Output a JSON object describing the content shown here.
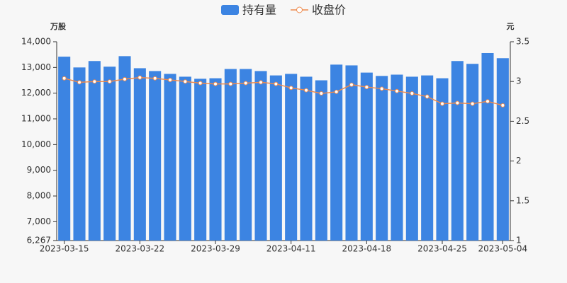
{
  "chart_data": {
    "type": "bar-line",
    "categories": [
      "2023-03-15",
      null,
      null,
      null,
      null,
      "2023-03-22",
      null,
      null,
      null,
      null,
      "2023-03-29",
      null,
      null,
      null,
      null,
      "2023-04-11",
      null,
      null,
      null,
      null,
      "2023-04-18",
      null,
      null,
      null,
      null,
      "2023-04-25",
      null,
      null,
      null,
      "2023-05-04"
    ],
    "y_axis_label": "万股",
    "y2_axis_label": "元",
    "series": [
      {
        "name": "持有量",
        "type": "bar",
        "color": "#3c84e2",
        "values": [
          13420,
          13000,
          13250,
          13030,
          13440,
          12970,
          12860,
          12750,
          12640,
          12560,
          12580,
          12940,
          12940,
          12860,
          12690,
          12750,
          12640,
          12500,
          13110,
          13080,
          12800,
          12670,
          12720,
          12640,
          12690,
          12580,
          13250,
          13140,
          13560,
          13360
        ]
      },
      {
        "name": "收盘价",
        "type": "line",
        "axis": "y2",
        "color": "#ee8a4d",
        "values": [
          3.04,
          2.99,
          3.0,
          3.0,
          3.03,
          3.05,
          3.04,
          3.02,
          3.0,
          2.98,
          2.97,
          2.97,
          2.98,
          2.99,
          2.97,
          2.92,
          2.89,
          2.85,
          2.87,
          2.96,
          2.93,
          2.91,
          2.88,
          2.85,
          2.81,
          2.72,
          2.73,
          2.72,
          2.75,
          2.7
        ]
      }
    ],
    "ylim": [
      6267,
      14000
    ],
    "yticks": [
      {
        "value": 6267,
        "label": "6,267"
      },
      {
        "value": 7000,
        "label": "7,000"
      },
      {
        "value": 8000,
        "label": "8,000"
      },
      {
        "value": 9000,
        "label": "9,000"
      },
      {
        "value": 10000,
        "label": "10,000"
      },
      {
        "value": 11000,
        "label": "11,000"
      },
      {
        "value": 12000,
        "label": "12,000"
      },
      {
        "value": 13000,
        "label": "13,000"
      },
      {
        "value": 14000,
        "label": "14,000"
      }
    ],
    "y2lim": [
      1,
      3.5
    ],
    "y2ticks": [
      1,
      1.5,
      2,
      2.5,
      3,
      3.5
    ],
    "grid": false
  }
}
